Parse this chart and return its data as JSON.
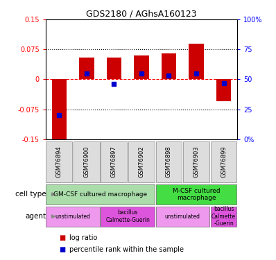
{
  "title": "GDS2180 / AGhsA160123",
  "samples": [
    "GSM76894",
    "GSM76900",
    "GSM76897",
    "GSM76902",
    "GSM76898",
    "GSM76903",
    "GSM76899"
  ],
  "log_ratio": [
    -0.155,
    0.055,
    0.055,
    0.06,
    0.065,
    0.09,
    -0.055
  ],
  "percentile_rank": [
    20,
    55,
    46,
    55,
    53,
    55,
    47
  ],
  "ylim": [
    -0.15,
    0.15
  ],
  "yticks": [
    -0.15,
    -0.075,
    0,
    0.075,
    0.15
  ],
  "ytick_labels_left": [
    "-0.15",
    "-0.075",
    "0",
    "0.075",
    "0.15"
  ],
  "ytick_labels_right": [
    "0%",
    "25",
    "50",
    "75",
    "100%"
  ],
  "bar_color": "#cc0000",
  "pct_color": "#0000cc",
  "cell_types": [
    {
      "label": "GM-CSF cultured macrophage",
      "span": [
        0,
        4
      ],
      "color": "#aaddaa"
    },
    {
      "label": "M-CSF cultured\nmacrophage",
      "span": [
        4,
        7
      ],
      "color": "#44dd44"
    }
  ],
  "agents": [
    {
      "label": "unstimulated",
      "span": [
        0,
        2
      ],
      "color": "#ee99ee"
    },
    {
      "label": "bacillus\nCalmette-Guerin",
      "span": [
        2,
        4
      ],
      "color": "#dd55dd"
    },
    {
      "label": "unstimulated",
      "span": [
        4,
        6
      ],
      "color": "#ee99ee"
    },
    {
      "label": "bacillus\nCalmette\n-Guerin",
      "span": [
        6,
        7
      ],
      "color": "#dd55dd"
    }
  ],
  "legend_items": [
    {
      "color": "#cc0000",
      "label": "log ratio"
    },
    {
      "color": "#0000cc",
      "label": "percentile rank within the sample"
    }
  ],
  "left_labels": [
    {
      "text": "cell type",
      "row": 0
    },
    {
      "text": "agent",
      "row": 1
    }
  ]
}
